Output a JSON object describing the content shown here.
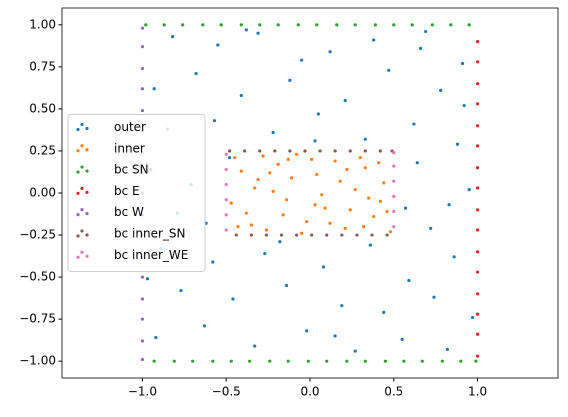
{
  "chart_data": {
    "type": "scatter",
    "xlim": [
      -1.48,
      1.48
    ],
    "ylim": [
      -1.1,
      1.1
    ],
    "xticks": [
      {
        "value": -1,
        "label": "−1.0"
      },
      {
        "value": -0.5,
        "label": "−0.5"
      },
      {
        "value": 0,
        "label": "0.0"
      },
      {
        "value": 0.5,
        "label": "0.5"
      },
      {
        "value": 1,
        "label": "1.0"
      }
    ],
    "yticks": [
      {
        "value": -1,
        "label": "−1.00"
      },
      {
        "value": -0.75,
        "label": "−0.75"
      },
      {
        "value": -0.5,
        "label": "−0.50"
      },
      {
        "value": -0.25,
        "label": "−0.25"
      },
      {
        "value": 0,
        "label": "0.00"
      },
      {
        "value": 0.25,
        "label": "0.25"
      },
      {
        "value": 0.5,
        "label": "0.50"
      },
      {
        "value": 0.75,
        "label": "0.75"
      },
      {
        "value": 1,
        "label": "1.00"
      }
    ],
    "legend": "center left",
    "series": [
      {
        "name": "outer",
        "color": "#1f77b4",
        "x": [
          -0.82,
          -0.55,
          -0.31,
          0.12,
          0.38,
          0.66,
          0.91,
          -0.93,
          -0.68,
          -0.41,
          -0.12,
          0.21,
          0.47,
          0.78,
          -0.85,
          -0.57,
          -0.22,
          0.05,
          0.33,
          0.62,
          0.88,
          -0.95,
          -0.71,
          0.64,
          0.83,
          -0.62,
          0.72,
          0.95,
          -0.89,
          -0.58,
          -0.27,
          0.08,
          0.36,
          0.59,
          0.86,
          -0.77,
          -0.46,
          -0.14,
          0.19,
          0.44,
          0.74,
          0.97,
          -0.92,
          -0.63,
          -0.33,
          -0.02,
          0.27,
          0.55,
          0.82,
          -0.48,
          -0.79,
          0.57,
          -0.05,
          0.15,
          -0.38,
          0.69,
          -0.97,
          0.92,
          0.03,
          -0.18
        ],
        "values": [
          0.93,
          0.88,
          0.95,
          0.84,
          0.91,
          0.86,
          0.77,
          0.62,
          0.71,
          0.58,
          0.67,
          0.55,
          0.73,
          0.61,
          0.38,
          0.43,
          0.36,
          0.47,
          0.32,
          0.41,
          0.29,
          0.14,
          0.05,
          0.18,
          -0.07,
          -0.18,
          -0.21,
          0.02,
          -0.33,
          -0.41,
          -0.36,
          -0.44,
          -0.31,
          -0.52,
          -0.38,
          -0.58,
          -0.63,
          -0.55,
          -0.67,
          -0.71,
          -0.62,
          -0.74,
          -0.86,
          -0.79,
          -0.91,
          -0.82,
          -0.94,
          -0.87,
          -0.93,
          0.21,
          -0.12,
          -0.09,
          0.79,
          -0.85,
          0.97,
          0.96,
          -0.51,
          0.52,
          0.31,
          -0.29
        ]
      },
      {
        "name": "inner",
        "color": "#ff7f0e",
        "x": [
          -0.45,
          -0.38,
          -0.31,
          -0.26,
          -0.19,
          -0.14,
          -0.08,
          -0.02,
          0.04,
          0.09,
          0.15,
          0.21,
          0.27,
          0.33,
          0.38,
          0.44,
          0.48,
          -0.47,
          -0.41,
          -0.35,
          -0.28,
          -0.22,
          -0.16,
          -0.11,
          -0.05,
          0.01,
          0.07,
          0.12,
          0.18,
          0.24,
          0.3,
          0.35,
          0.41,
          0.46,
          -0.43,
          -0.33,
          -0.24,
          -0.13,
          0.03,
          0.22,
          0.32,
          0.42
        ],
        "values": [
          0.21,
          -0.12,
          0.08,
          -0.22,
          0.17,
          -0.04,
          0.23,
          -0.17,
          0.11,
          -0.09,
          0.19,
          -0.21,
          0.02,
          0.15,
          -0.14,
          0.06,
          -0.23,
          -0.06,
          0.13,
          -0.19,
          0.22,
          0.01,
          -0.13,
          0.09,
          -0.24,
          0.2,
          -0.01,
          -0.18,
          0.07,
          -0.1,
          0.21,
          -0.03,
          0.18,
          -0.11,
          -0.2,
          0.03,
          0.12,
          0.2,
          -0.07,
          0.14,
          -0.2,
          -0.05
        ]
      },
      {
        "name": "bc SN",
        "color": "#2ca02c",
        "x": [
          -0.98,
          -0.87,
          -0.76,
          -0.64,
          -0.53,
          -0.41,
          -0.3,
          -0.19,
          -0.07,
          0.04,
          0.16,
          0.27,
          0.39,
          0.5,
          0.61,
          0.73,
          0.84,
          0.95,
          -0.93,
          -0.81,
          -0.7,
          -0.58,
          -0.47,
          -0.36,
          -0.24,
          -0.13,
          -0.01,
          0.1,
          0.22,
          0.33,
          0.45,
          0.56,
          0.67,
          0.79,
          0.9,
          0.99
        ],
        "values": [
          1,
          1,
          1,
          1,
          1,
          1,
          1,
          1,
          1,
          1,
          1,
          1,
          1,
          1,
          1,
          1,
          1,
          1,
          -1,
          -1,
          -1,
          -1,
          -1,
          -1,
          -1,
          -1,
          -1,
          -1,
          -1,
          -1,
          -1,
          -1,
          -1,
          -1,
          -1,
          -1
        ]
      },
      {
        "name": "bc E",
        "color": "#d62728",
        "x": [
          1,
          1,
          1,
          1,
          1,
          1,
          1,
          1,
          1,
          1,
          1,
          1,
          1,
          1,
          1,
          1
        ],
        "values": [
          -0.97,
          -0.84,
          -0.72,
          -0.6,
          -0.47,
          -0.35,
          -0.22,
          -0.1,
          0.03,
          0.15,
          0.28,
          0.4,
          0.53,
          0.65,
          0.78,
          0.9
        ]
      },
      {
        "name": "bc W",
        "color": "#9467bd",
        "x": [
          -1,
          -1,
          -1,
          -1,
          -1,
          -1,
          -1,
          -1,
          -1,
          -1,
          -1,
          -1,
          -1,
          -1,
          -1,
          -1,
          -1
        ],
        "values": [
          -0.99,
          -0.88,
          -0.75,
          -0.63,
          -0.5,
          -0.38,
          -0.25,
          -0.13,
          0,
          0.12,
          0.24,
          0.37,
          0.49,
          0.62,
          0.74,
          0.87,
          0.98
        ]
      },
      {
        "name": "bc inner_SN",
        "color": "#8c564b",
        "x": [
          -0.48,
          -0.39,
          -0.3,
          -0.21,
          -0.12,
          -0.03,
          0.06,
          0.15,
          0.24,
          0.33,
          0.42,
          0.49,
          -0.44,
          -0.35,
          -0.26,
          -0.17,
          -0.08,
          0.01,
          0.1,
          0.19,
          0.28,
          0.37,
          0.46
        ],
        "values": [
          0.25,
          0.25,
          0.25,
          0.25,
          0.25,
          0.25,
          0.25,
          0.25,
          0.25,
          0.25,
          0.25,
          0.25,
          -0.25,
          -0.25,
          -0.25,
          -0.25,
          -0.25,
          -0.25,
          -0.25,
          -0.25,
          -0.25,
          -0.25,
          -0.25
        ]
      },
      {
        "name": "bc inner_WE",
        "color": "#e377c2",
        "x": [
          -0.5,
          -0.5,
          -0.5,
          -0.5,
          -0.5,
          -0.5,
          0.5,
          0.5,
          0.5,
          0.5,
          0.5,
          0.5
        ],
        "values": [
          -0.22,
          -0.13,
          -0.04,
          0.05,
          0.14,
          0.23,
          -0.2,
          -0.11,
          -0.02,
          0.07,
          0.16,
          0.24
        ]
      }
    ]
  }
}
